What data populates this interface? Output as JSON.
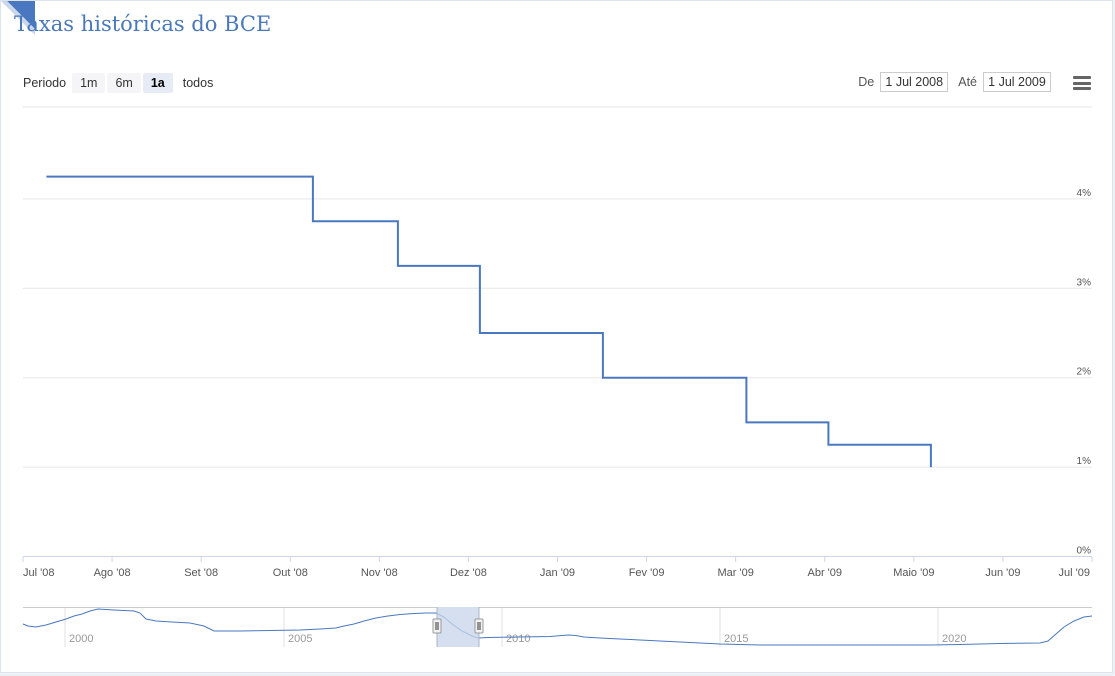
{
  "title": "Taxas históricas do BCE",
  "range_selector": {
    "label": "Periodo",
    "buttons": [
      "1m",
      "6m",
      "1a",
      "todos"
    ],
    "selected": "1a"
  },
  "date_range": {
    "from_label": "De",
    "from_value": "1 Jul 2008",
    "to_label": "Até",
    "to_value": "1 Jul 2009"
  },
  "icons": {
    "menu": "hamburger-menu-icon"
  },
  "colors": {
    "line": "#4a78c0",
    "title": "#4a78b8",
    "navigator_mask": "#c8d4ea"
  },
  "chart_data": {
    "type": "line",
    "step": true,
    "x_tick_labels": [
      "Jul '08",
      "Ago '08",
      "Set '08",
      "Out '08",
      "Nov '08",
      "Dez '08",
      "Jan '09",
      "Fev '09",
      "Mar '09",
      "Abr '09",
      "Maio '09",
      "Jun '09",
      "Jul '09"
    ],
    "y_tick_labels": [
      "0%",
      "1%",
      "2%",
      "3%",
      "4%"
    ],
    "ylim": [
      0,
      5
    ],
    "x_range": [
      "2008-07-01",
      "2009-07-01"
    ],
    "series": [
      {
        "points": [
          [
            "2008-07-09",
            4.25
          ],
          [
            "2008-10-08",
            3.75
          ],
          [
            "2008-11-06",
            3.25
          ],
          [
            "2008-12-04",
            2.5
          ],
          [
            "2009-01-15",
            2.0
          ],
          [
            "2009-03-05",
            1.5
          ],
          [
            "2009-04-02",
            1.25
          ],
          [
            "2009-05-07",
            1.0
          ]
        ]
      }
    ],
    "navigator": {
      "x_tick_labels": [
        "2000",
        "2005",
        "2010",
        "2015",
        "2020"
      ],
      "selected_range": [
        "2008-07-01",
        "2009-07-01"
      ]
    }
  }
}
